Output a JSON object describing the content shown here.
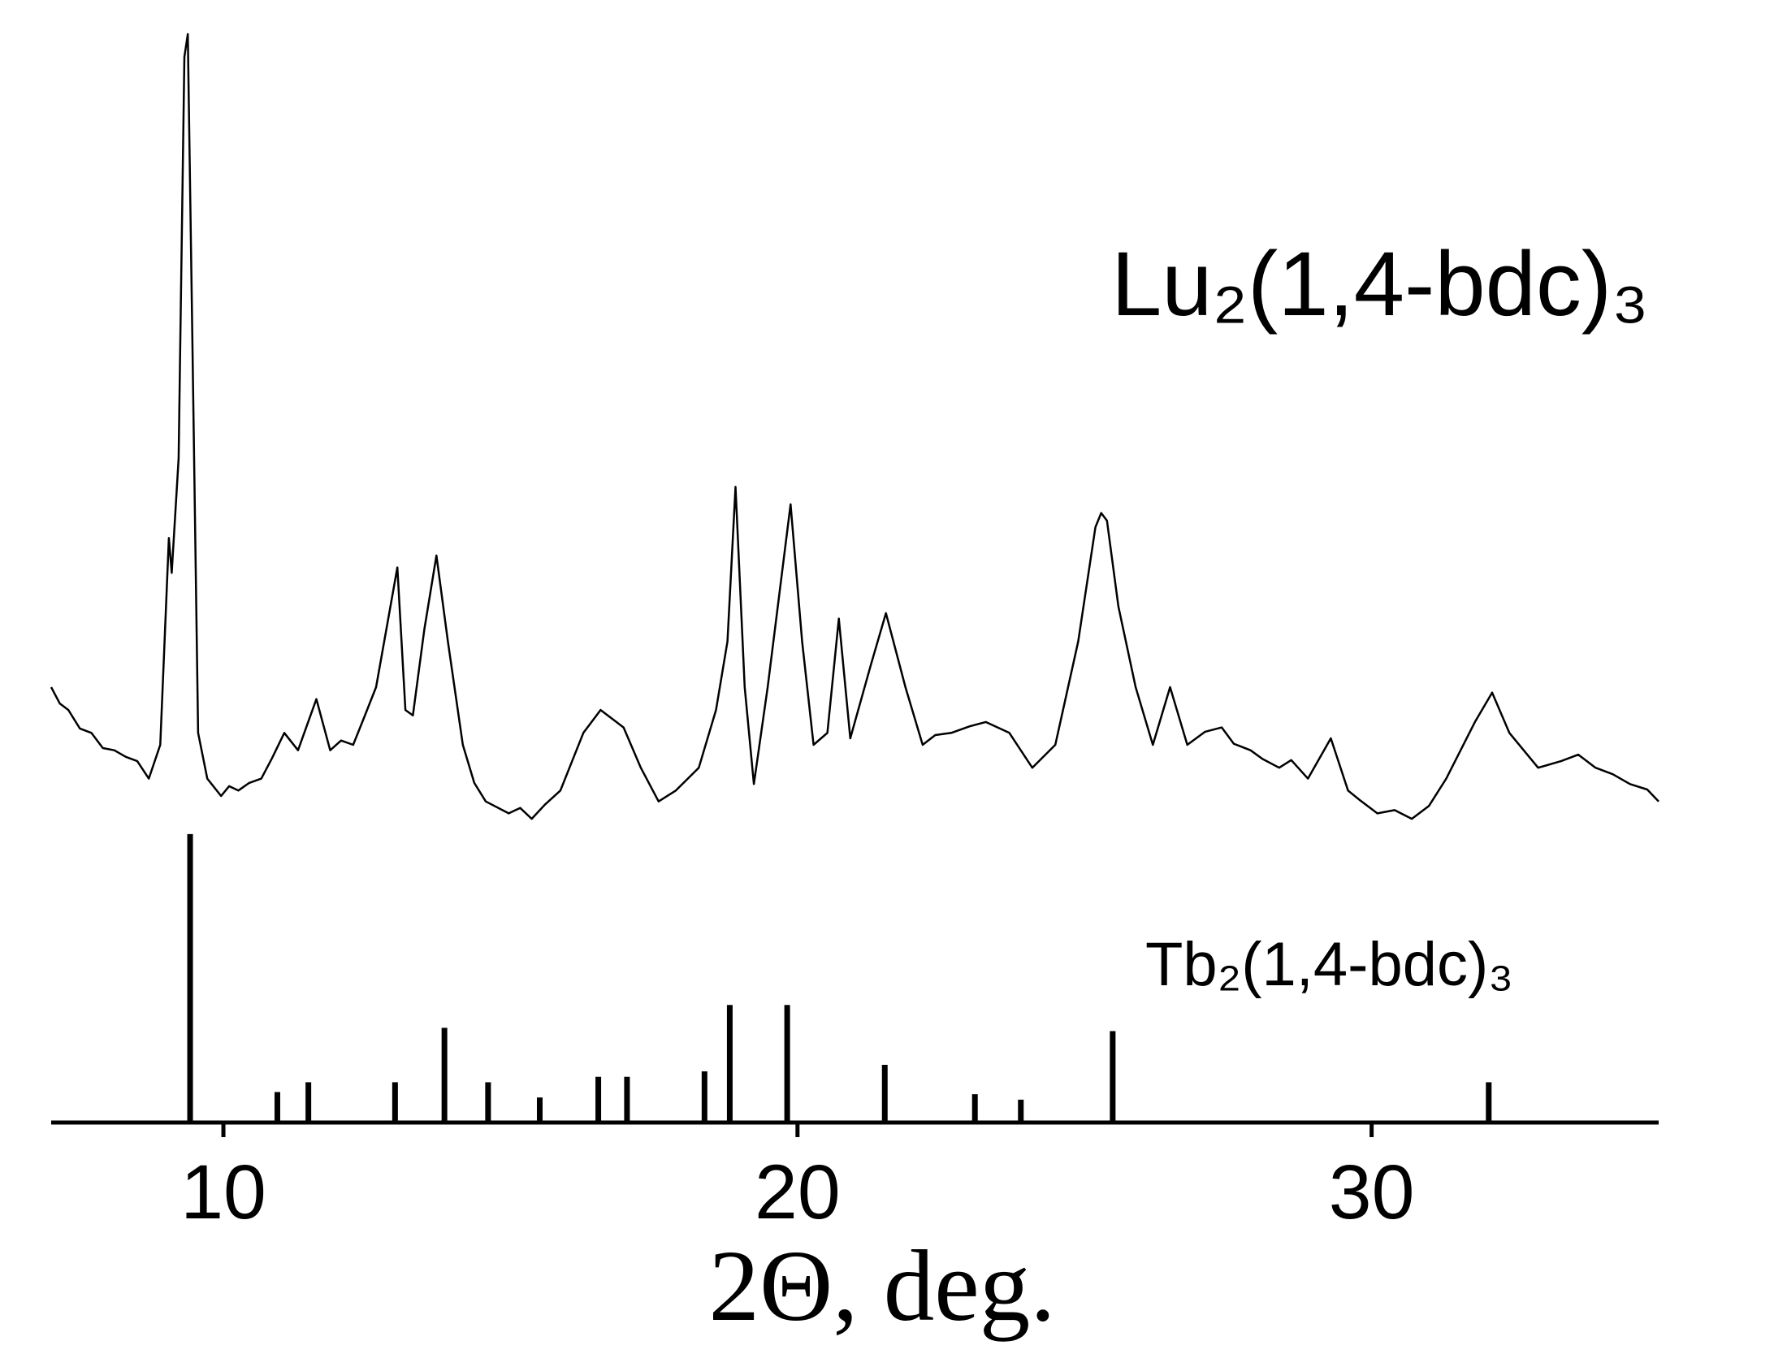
{
  "chart_data": {
    "type": "line",
    "x_label": "2Θ, deg.",
    "xlim": [
      7,
      35
    ],
    "xticks": [
      10,
      20,
      30
    ],
    "ylim": [
      0,
      100
    ],
    "series": [
      {
        "name": "Lu₂(1,4-bdc)₃",
        "type": "line",
        "color": "#000000",
        "x": [
          7.0,
          7.15,
          7.3,
          7.5,
          7.7,
          7.9,
          8.1,
          8.3,
          8.5,
          8.6,
          8.7,
          8.9,
          9.05,
          9.1,
          9.22,
          9.32,
          9.38,
          9.46,
          9.56,
          9.72,
          9.96,
          10.1,
          10.26,
          10.45,
          10.66,
          10.85,
          11.06,
          11.3,
          11.62,
          11.86,
          12.05,
          12.26,
          12.45,
          12.66,
          13.03,
          13.17,
          13.3,
          13.5,
          13.71,
          13.91,
          14.17,
          14.37,
          14.57,
          14.97,
          15.17,
          15.37,
          15.6,
          15.87,
          16.27,
          16.57,
          16.97,
          17.27,
          17.58,
          17.88,
          18.28,
          18.58,
          18.78,
          18.92,
          19.08,
          19.24,
          19.48,
          19.68,
          19.88,
          20.08,
          20.28,
          20.52,
          20.72,
          20.92,
          21.28,
          21.54,
          21.88,
          22.18,
          22.4,
          22.68,
          23.0,
          23.28,
          23.69,
          24.09,
          24.49,
          24.89,
          25.19,
          25.29,
          25.39,
          25.59,
          25.89,
          26.19,
          26.49,
          26.79,
          27.1,
          27.39,
          27.6,
          27.89,
          28.1,
          28.39,
          28.6,
          28.89,
          29.29,
          29.59,
          29.8,
          30.1,
          30.4,
          30.7,
          31.0,
          31.3,
          31.8,
          32.1,
          32.4,
          32.9,
          33.3,
          33.6,
          33.9,
          34.2,
          34.5,
          34.8,
          35.0
        ],
        "values": [
          40,
          38.5,
          37.9,
          36.2,
          35.8,
          34.4,
          34.2,
          33.6,
          33.2,
          32.4,
          31.6,
          34.7,
          53.7,
          50.5,
          61,
          97.9,
          100,
          71.6,
          35.8,
          31.6,
          30,
          30.9,
          30.5,
          31.2,
          31.6,
          33.5,
          35.8,
          34.2,
          38.9,
          34.2,
          35.1,
          34.7,
          37.2,
          40,
          51,
          37.9,
          37.4,
          45.3,
          52.1,
          44.2,
          34.7,
          31.2,
          29.5,
          28.4,
          28.9,
          27.9,
          29.2,
          30.5,
          35.8,
          37.9,
          36.3,
          32.6,
          29.5,
          30.5,
          32.6,
          37.9,
          44.2,
          58.4,
          40,
          31.1,
          40,
          48.4,
          56.8,
          44.2,
          34.7,
          35.8,
          46.3,
          35.3,
          42.1,
          46.8,
          40,
          34.7,
          35.6,
          35.8,
          36.4,
          36.8,
          35.8,
          32.6,
          34.7,
          44.2,
          54.7,
          56.0,
          55.3,
          47.4,
          40,
          34.7,
          40,
          34.7,
          35.9,
          36.3,
          34.8,
          34.2,
          33.4,
          32.6,
          33.3,
          31.6,
          35.3,
          30.5,
          29.6,
          28.4,
          28.7,
          27.9,
          29.1,
          31.6,
          36.8,
          39.5,
          35.8,
          32.6,
          33.2,
          33.8,
          32.6,
          32.0,
          31.1,
          30.6,
          29.5
        ]
      },
      {
        "name": "Tb₂(1,4-bdc)₃",
        "type": "stick",
        "color": "#000000",
        "x": [
          9.42,
          10.94,
          11.48,
          12.99,
          13.85,
          14.61,
          15.51,
          16.53,
          17.03,
          18.38,
          18.82,
          19.82,
          21.52,
          23.09,
          23.89,
          25.49,
          32.04
        ],
        "values": [
          26.5,
          2.8,
          3.7,
          3.7,
          8.7,
          3.7,
          2.3,
          4.2,
          4.2,
          4.7,
          10.8,
          10.8,
          5.3,
          2.6,
          2.1,
          8.4,
          3.7
        ]
      }
    ]
  }
}
